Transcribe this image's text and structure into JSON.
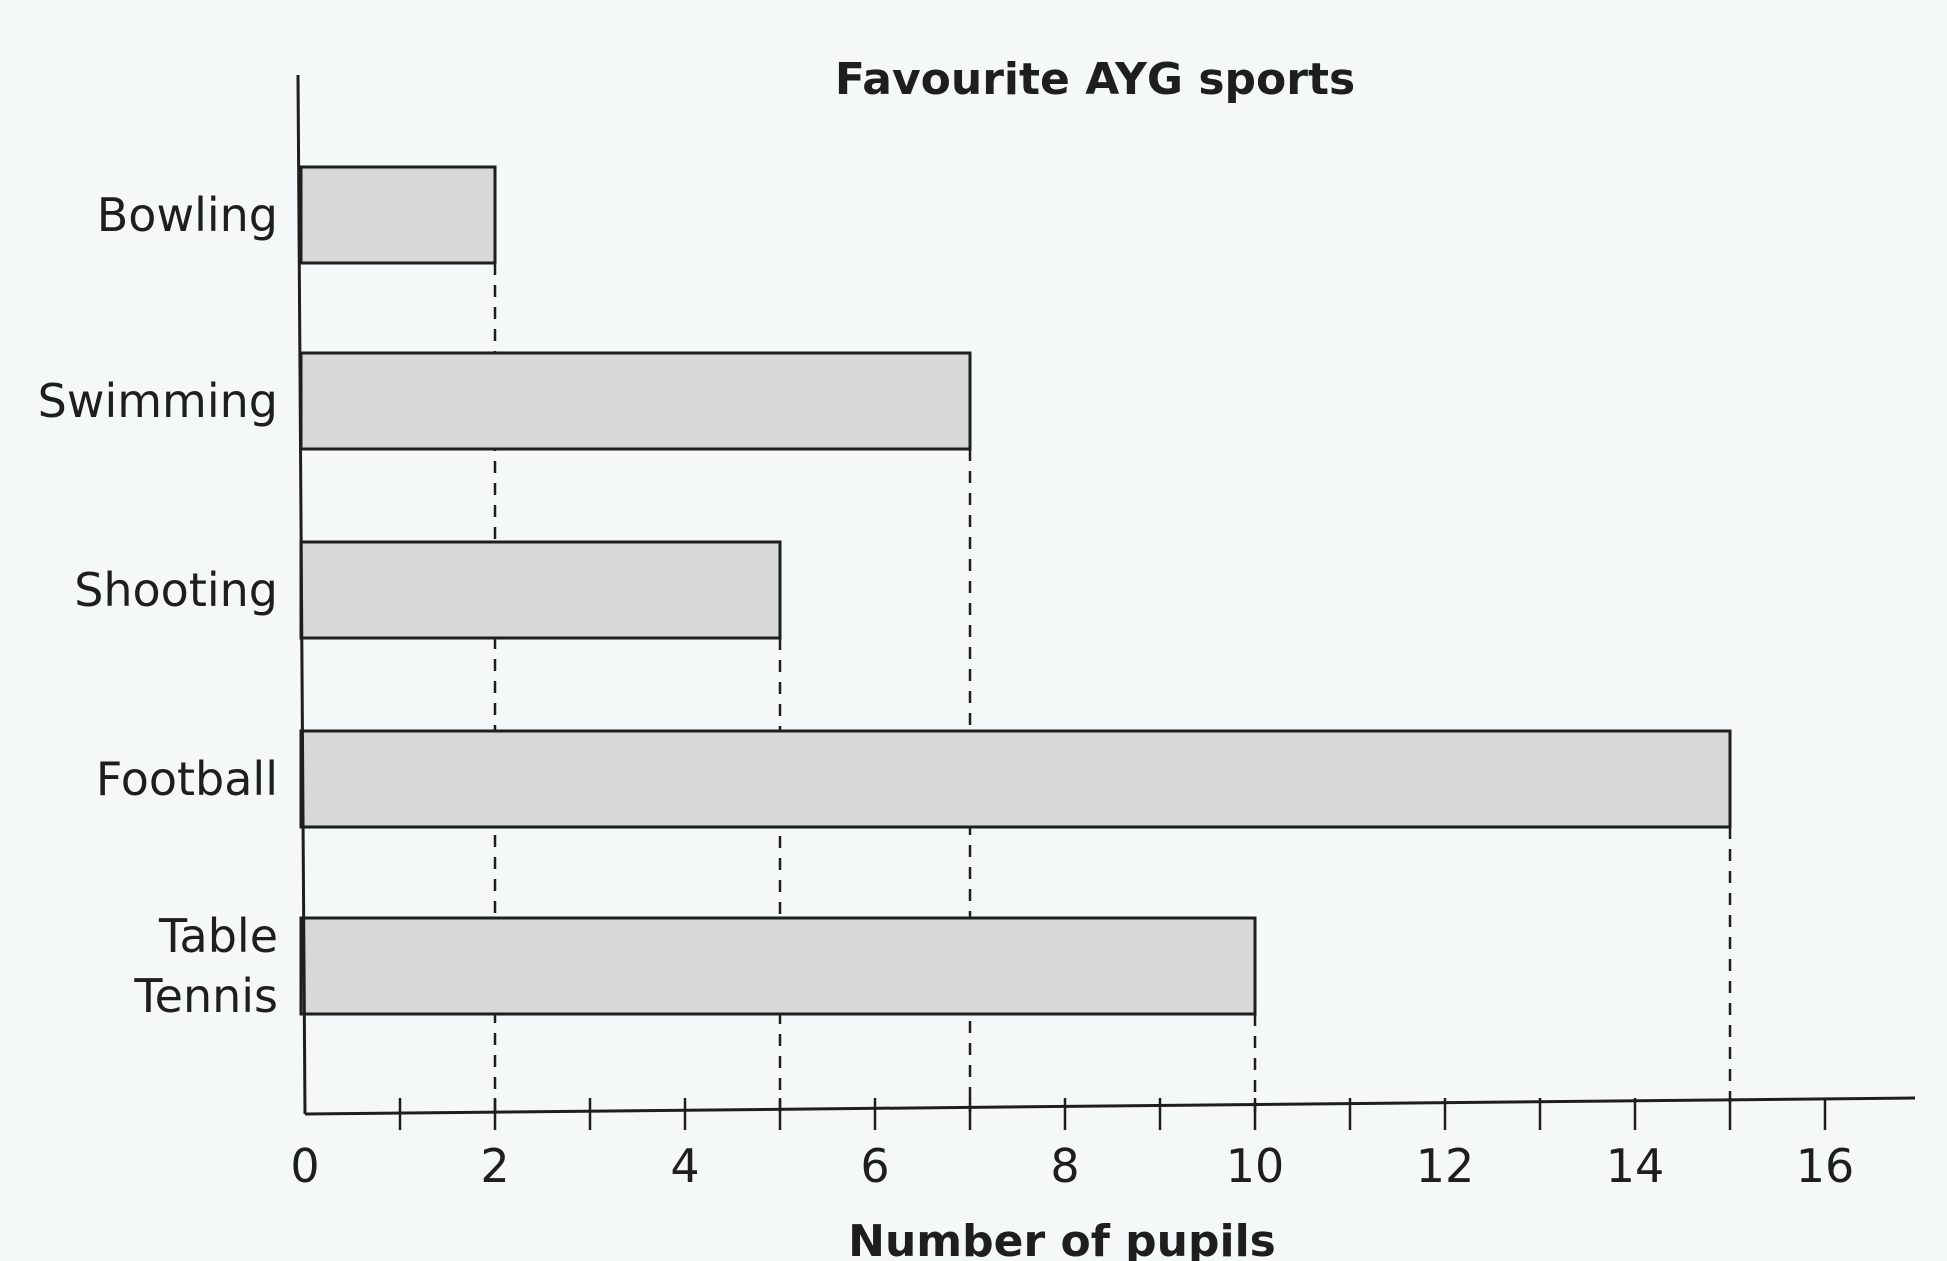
{
  "chart_data": {
    "type": "bar",
    "orientation": "horizontal",
    "title": "Favourite AYG sports",
    "xlabel": "Number of pupils",
    "ylabel": "",
    "categories": [
      [
        "Bowling"
      ],
      [
        "Swimming"
      ],
      [
        "Shooting"
      ],
      [
        "Football"
      ],
      [
        "Table",
        "Tennis"
      ]
    ],
    "values": [
      2,
      7,
      5,
      15,
      10
    ],
    "xlim": [
      0,
      17
    ],
    "x_ticks": [
      0,
      2,
      4,
      6,
      8,
      10,
      12,
      14,
      16
    ],
    "x_minor_step": 1,
    "grid": false,
    "value_guides": "dashed lines from each bar end down to the x-axis",
    "bar_color": "#d8d8d8",
    "bar_edge_color": "#1e1e1e"
  }
}
